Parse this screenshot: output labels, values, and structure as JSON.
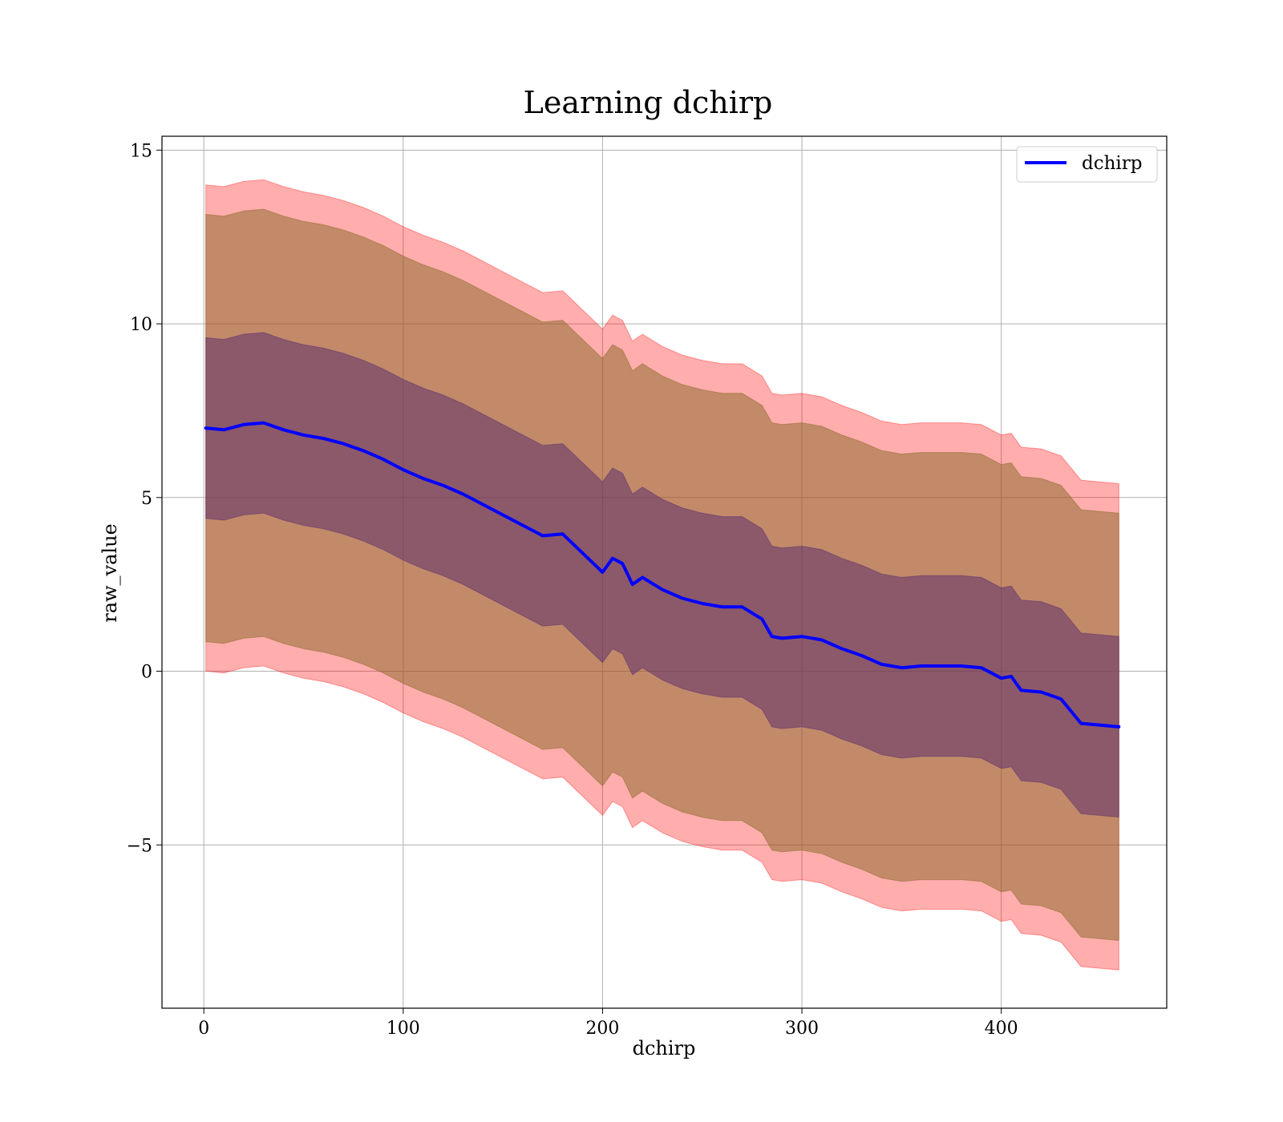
{
  "chart_data": {
    "type": "line",
    "title": "Learning dchirp",
    "xlabel": "dchirp",
    "ylabel": "raw_value",
    "xlim": [
      -21,
      483
    ],
    "ylim": [
      -9.7,
      15.4
    ],
    "xticks": [
      0,
      100,
      200,
      300,
      400
    ],
    "yticks": [
      -5,
      0,
      5,
      10,
      15
    ],
    "ytick_labels": [
      "−5",
      "0",
      "5",
      "10",
      "15"
    ],
    "grid": true,
    "legend": {
      "position": "top-right",
      "entries": [
        "dchirp"
      ]
    },
    "colors": {
      "line": "#0000ff",
      "band_3sigma": "#ff0000",
      "band_2sigma": "#8b6a2a",
      "band_1sigma": "#5a2c6e",
      "grid": "#b0b0b0"
    },
    "series": [
      {
        "name": "dchirp",
        "x": [
          1,
          10,
          20,
          30,
          40,
          50,
          60,
          70,
          80,
          90,
          100,
          110,
          120,
          130,
          140,
          150,
          160,
          170,
          180,
          190,
          200,
          205,
          210,
          215,
          220,
          230,
          240,
          250,
          260,
          270,
          280,
          285,
          290,
          300,
          310,
          320,
          330,
          340,
          350,
          360,
          370,
          380,
          390,
          400,
          405,
          410,
          420,
          430,
          440,
          459
        ],
        "mean": [
          7.0,
          6.95,
          7.1,
          7.15,
          6.95,
          6.8,
          6.7,
          6.55,
          6.35,
          6.1,
          5.8,
          5.55,
          5.35,
          5.1,
          4.8,
          4.5,
          4.2,
          3.9,
          3.95,
          3.4,
          2.85,
          3.25,
          3.1,
          2.5,
          2.7,
          2.35,
          2.1,
          1.95,
          1.85,
          1.85,
          1.5,
          1.0,
          0.95,
          1.0,
          0.9,
          0.65,
          0.45,
          0.2,
          0.1,
          0.15,
          0.15,
          0.15,
          0.1,
          -0.2,
          -0.15,
          -0.55,
          -0.6,
          -0.8,
          -1.5,
          -1.6
        ],
        "band_3sigma": {
          "upper_offset": 7.0,
          "lower_offset": 7.0
        },
        "band_2sigma": {
          "upper_offset": 6.15,
          "lower_offset": 6.15
        },
        "band_1sigma": {
          "upper_offset": 2.6,
          "lower_offset": 2.6
        }
      }
    ]
  }
}
